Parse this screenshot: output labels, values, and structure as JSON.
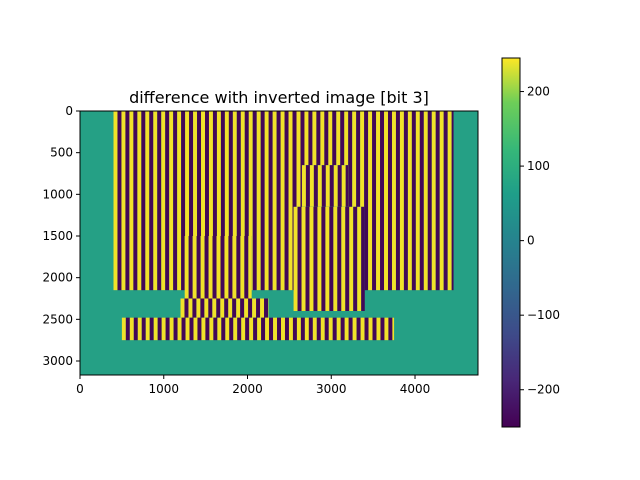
{
  "chart_data": {
    "type": "heatmap",
    "title": "difference with inverted image [bit 3]",
    "xlabel": "",
    "ylabel": "",
    "x_extent": [
      0,
      4752
    ],
    "y_extent": [
      3168,
      0
    ],
    "x_ticks": [
      0,
      1000,
      2000,
      3000,
      4000
    ],
    "y_ticks": [
      0,
      500,
      1000,
      1500,
      2000,
      2500,
      3000
    ],
    "colormap": "viridis",
    "colorbar": {
      "range": [
        -250,
        245
      ],
      "ticks": [
        200,
        100,
        0,
        -100,
        -200
      ],
      "tick_labels": [
        "200",
        "100",
        "0",
        "−100",
        "−200"
      ]
    },
    "background_value": 20,
    "stripe_value_high": 230,
    "stripe_value_low": -240,
    "stripe_period": 95,
    "regions": [
      {
        "name": "background-wall",
        "x": [
          400,
          4460
        ],
        "y": [
          0,
          2150
        ]
      },
      {
        "name": "left-object",
        "x": [
          1250,
          2050
        ],
        "y": [
          1500,
          2480
        ]
      },
      {
        "name": "right-figure-head",
        "x": [
          2650,
          3200
        ],
        "y": [
          650,
          1150
        ]
      },
      {
        "name": "right-figure-body",
        "x": [
          2550,
          3400
        ],
        "y": [
          1150,
          2400
        ]
      },
      {
        "name": "left-base-strip",
        "x": [
          1200,
          2250
        ],
        "y": [
          2250,
          2550
        ]
      },
      {
        "name": "front-bar",
        "x": [
          500,
          3750
        ],
        "y": [
          2480,
          2750
        ]
      }
    ]
  },
  "colors": {
    "high": "#fde725",
    "low": "#440154",
    "zero": "#21918c",
    "background": "#25a085"
  }
}
